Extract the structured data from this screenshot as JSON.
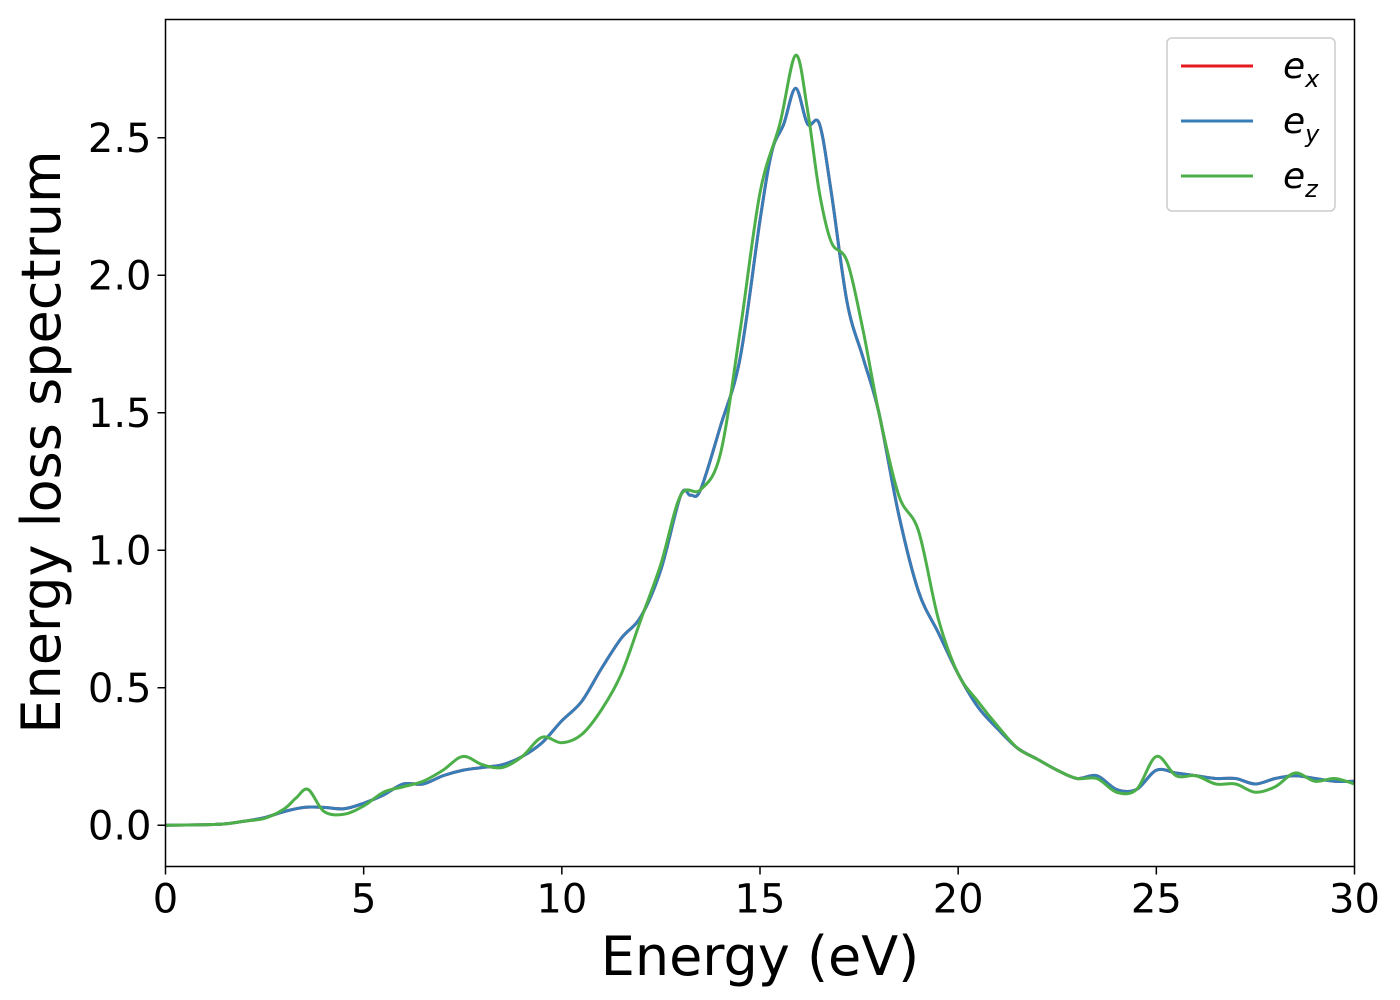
{
  "chart_data": {
    "type": "line",
    "title": "",
    "xlabel": "Energy (eV)",
    "ylabel": "Energy loss spectrum",
    "xlim": [
      0,
      30
    ],
    "ylim": [
      -0.15,
      2.93
    ],
    "xticks": [
      "0",
      "5",
      "10",
      "15",
      "20",
      "25",
      "30"
    ],
    "yticks": [
      "0.0",
      "0.5",
      "1.0",
      "1.5",
      "2.0",
      "2.5"
    ],
    "grid": false,
    "legend_position": "top-right",
    "series": [
      {
        "name": "e_x",
        "legend_base": "e",
        "legend_sub": "x",
        "color": "#e41a1c",
        "x": [
          0,
          1,
          1.5,
          2,
          2.5,
          3,
          3.5,
          4,
          4.5,
          5,
          5.5,
          6,
          6.5,
          7,
          7.5,
          8,
          8.5,
          9,
          9.5,
          10,
          10.5,
          11,
          11.5,
          12,
          12.5,
          13,
          13.25,
          13.5,
          14,
          14.5,
          15,
          15.3,
          15.6,
          15.9,
          16.2,
          16.5,
          16.8,
          17.2,
          17.6,
          18,
          18.5,
          19,
          19.5,
          20,
          20.5,
          21,
          21.5,
          22,
          22.5,
          23,
          23.5,
          24,
          24.5,
          25,
          25.5,
          26,
          26.5,
          27,
          27.5,
          28,
          28.5,
          29,
          29.5,
          30
        ],
        "y": [
          0.0,
          0.002,
          0.005,
          0.015,
          0.028,
          0.05,
          0.065,
          0.065,
          0.06,
          0.08,
          0.11,
          0.15,
          0.15,
          0.18,
          0.2,
          0.21,
          0.22,
          0.25,
          0.3,
          0.38,
          0.45,
          0.57,
          0.68,
          0.76,
          0.93,
          1.2,
          1.2,
          1.22,
          1.45,
          1.7,
          2.2,
          2.45,
          2.55,
          2.68,
          2.55,
          2.55,
          2.3,
          1.9,
          1.7,
          1.5,
          1.13,
          0.85,
          0.7,
          0.55,
          0.43,
          0.35,
          0.28,
          0.24,
          0.2,
          0.17,
          0.18,
          0.13,
          0.13,
          0.2,
          0.19,
          0.18,
          0.17,
          0.17,
          0.15,
          0.17,
          0.18,
          0.17,
          0.16,
          0.16
        ]
      },
      {
        "name": "e_y",
        "legend_base": "e",
        "legend_sub": "y",
        "color": "#377eb8",
        "x": [
          0,
          1,
          1.5,
          2,
          2.5,
          3,
          3.5,
          4,
          4.5,
          5,
          5.5,
          6,
          6.5,
          7,
          7.5,
          8,
          8.5,
          9,
          9.5,
          10,
          10.5,
          11,
          11.5,
          12,
          12.5,
          13,
          13.25,
          13.5,
          14,
          14.5,
          15,
          15.3,
          15.6,
          15.9,
          16.2,
          16.5,
          16.8,
          17.2,
          17.6,
          18,
          18.5,
          19,
          19.5,
          20,
          20.5,
          21,
          21.5,
          22,
          22.5,
          23,
          23.5,
          24,
          24.5,
          25,
          25.5,
          26,
          26.5,
          27,
          27.5,
          28,
          28.5,
          29,
          29.5,
          30
        ],
        "y": [
          0.0,
          0.002,
          0.005,
          0.015,
          0.028,
          0.05,
          0.065,
          0.065,
          0.06,
          0.08,
          0.11,
          0.15,
          0.15,
          0.18,
          0.2,
          0.21,
          0.22,
          0.25,
          0.3,
          0.38,
          0.45,
          0.57,
          0.68,
          0.76,
          0.93,
          1.2,
          1.2,
          1.22,
          1.45,
          1.7,
          2.2,
          2.45,
          2.55,
          2.68,
          2.55,
          2.55,
          2.3,
          1.9,
          1.7,
          1.5,
          1.13,
          0.85,
          0.7,
          0.55,
          0.43,
          0.35,
          0.28,
          0.24,
          0.2,
          0.17,
          0.18,
          0.13,
          0.13,
          0.2,
          0.19,
          0.18,
          0.17,
          0.17,
          0.15,
          0.17,
          0.18,
          0.17,
          0.16,
          0.16
        ]
      },
      {
        "name": "e_z",
        "legend_base": "e",
        "legend_sub": "z",
        "color": "#4daf4a",
        "x": [
          0,
          1,
          1.5,
          2,
          2.5,
          3,
          3.3,
          3.6,
          4,
          4.5,
          5,
          5.5,
          6,
          6.5,
          7,
          7.5,
          8,
          8.5,
          9,
          9.5,
          10,
          10.5,
          11,
          11.5,
          12,
          12.5,
          13,
          13.5,
          14,
          14.5,
          15,
          15.5,
          15.9,
          16.2,
          16.5,
          16.8,
          17.2,
          17.6,
          18,
          18.5,
          19,
          19.5,
          20,
          20.5,
          21,
          21.5,
          22,
          22.5,
          23,
          23.5,
          24,
          24.5,
          25,
          25.5,
          26,
          26.5,
          27,
          27.5,
          28,
          28.5,
          29,
          29.5,
          30
        ],
        "y": [
          0.0,
          0.002,
          0.005,
          0.015,
          0.025,
          0.06,
          0.1,
          0.13,
          0.05,
          0.04,
          0.07,
          0.12,
          0.14,
          0.16,
          0.2,
          0.25,
          0.22,
          0.21,
          0.25,
          0.32,
          0.3,
          0.33,
          0.42,
          0.55,
          0.75,
          0.95,
          1.2,
          1.22,
          1.35,
          1.8,
          2.3,
          2.55,
          2.8,
          2.6,
          2.3,
          2.12,
          2.05,
          1.8,
          1.5,
          1.2,
          1.07,
          0.75,
          0.55,
          0.45,
          0.36,
          0.28,
          0.24,
          0.2,
          0.17,
          0.17,
          0.12,
          0.13,
          0.25,
          0.18,
          0.18,
          0.15,
          0.15,
          0.12,
          0.14,
          0.19,
          0.16,
          0.17,
          0.15
        ]
      }
    ]
  }
}
